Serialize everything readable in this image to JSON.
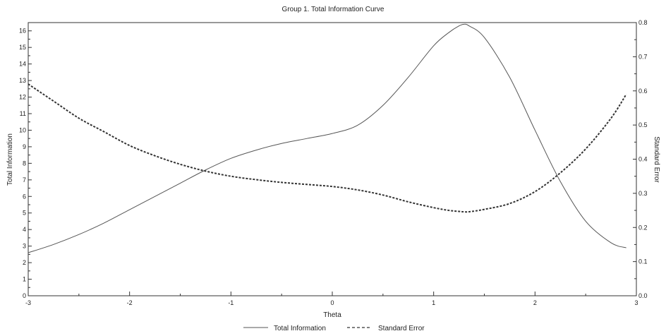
{
  "chart_data": {
    "type": "line",
    "title": "Group 1. Total Information Curve",
    "xlabel": "Theta",
    "ylabel": "Total Information",
    "y2label": "Standard Error",
    "xlim": [
      -3,
      3
    ],
    "ylim": [
      0,
      16.5
    ],
    "y2lim": [
      0,
      0.8
    ],
    "x_ticks": [
      -3,
      -2,
      -1,
      0,
      1,
      2,
      3
    ],
    "y_ticks": [
      0,
      1,
      2,
      3,
      4,
      5,
      6,
      7,
      8,
      9,
      10,
      11,
      12,
      13,
      14,
      15,
      16
    ],
    "y2_ticks": [
      0.0,
      0.1,
      0.2,
      0.3,
      0.4,
      0.5,
      0.6,
      0.7,
      0.8
    ],
    "grid": false,
    "legend_position": "bottom-center",
    "series": [
      {
        "name": "Total Information",
        "axis": "left",
        "style": "solid",
        "color": "#555555",
        "x": [
          -3.0,
          -2.75,
          -2.5,
          -2.25,
          -2.0,
          -1.75,
          -1.5,
          -1.25,
          -1.0,
          -0.75,
          -0.5,
          -0.25,
          0.0,
          0.25,
          0.5,
          0.75,
          1.0,
          1.15,
          1.25,
          1.3,
          1.35,
          1.5,
          1.75,
          2.0,
          2.25,
          2.5,
          2.75,
          2.9
        ],
        "values": [
          2.6,
          3.1,
          3.7,
          4.4,
          5.2,
          6.0,
          6.8,
          7.6,
          8.3,
          8.8,
          9.2,
          9.5,
          9.8,
          10.3,
          11.5,
          13.2,
          15.1,
          15.9,
          16.3,
          16.4,
          16.3,
          15.6,
          13.2,
          10.0,
          6.9,
          4.5,
          3.2,
          2.9
        ]
      },
      {
        "name": "Standard Error",
        "axis": "right",
        "style": "dashed",
        "color": "#333333",
        "x": [
          -3.0,
          -2.75,
          -2.5,
          -2.25,
          -2.0,
          -1.75,
          -1.5,
          -1.25,
          -1.0,
          -0.75,
          -0.5,
          -0.25,
          0.0,
          0.25,
          0.5,
          0.75,
          1.0,
          1.15,
          1.25,
          1.3,
          1.35,
          1.5,
          1.75,
          2.0,
          2.25,
          2.5,
          2.75,
          2.9
        ],
        "values": [
          0.62,
          0.57,
          0.52,
          0.48,
          0.44,
          0.41,
          0.385,
          0.365,
          0.35,
          0.34,
          0.332,
          0.326,
          0.32,
          0.31,
          0.295,
          0.275,
          0.258,
          0.25,
          0.247,
          0.246,
          0.246,
          0.253,
          0.27,
          0.305,
          0.36,
          0.43,
          0.52,
          0.59
        ]
      }
    ]
  }
}
